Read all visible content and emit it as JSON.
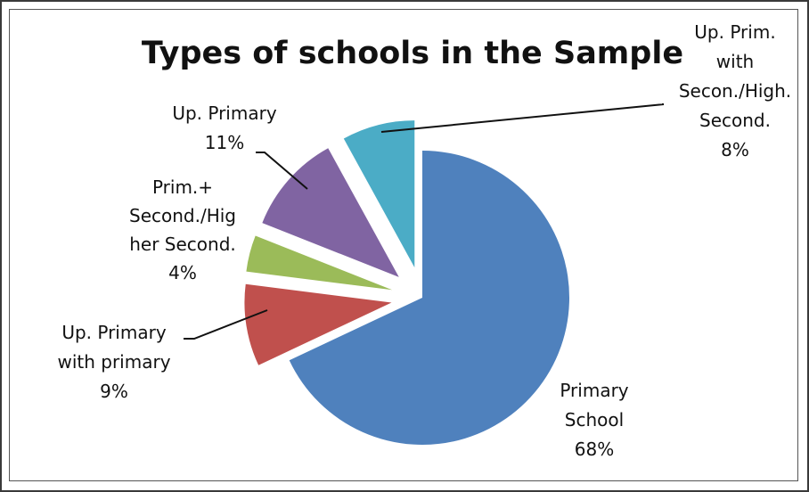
{
  "chart_data": {
    "type": "pie",
    "title": "Types of schools in the Sample",
    "slices": [
      {
        "label_lines": [
          "Primary",
          "School",
          "68%"
        ],
        "value": 68,
        "color": "#4f81bd",
        "exploded": false
      },
      {
        "label_lines": [
          "Up. Primary",
          "with primary",
          "9%"
        ],
        "value": 9,
        "color": "#c0504d",
        "exploded": true
      },
      {
        "label_lines": [
          "Prim.+",
          "Second./Hig",
          "her Second.",
          "4%"
        ],
        "value": 4,
        "color": "#9bbb59",
        "exploded": true
      },
      {
        "label_lines": [
          "Up. Primary",
          "11%"
        ],
        "value": 11,
        "color": "#8064a2",
        "exploded": true
      },
      {
        "label_lines": [
          "Up. Prim.",
          "with",
          "Secon./High.",
          "Second.",
          "8%"
        ],
        "value": 8,
        "color": "#4bacc6",
        "exploded": true
      }
    ]
  }
}
